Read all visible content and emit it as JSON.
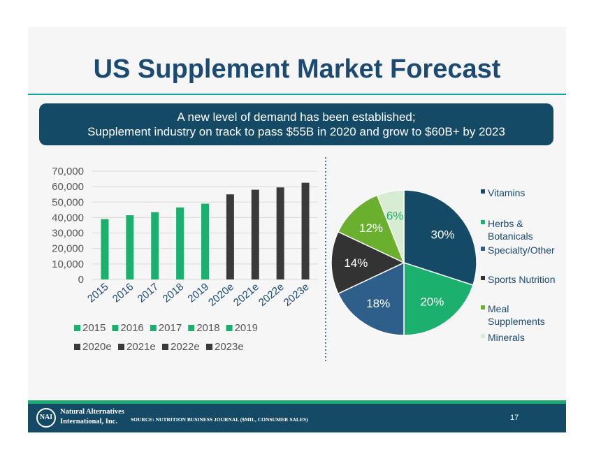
{
  "title": "US Supplement Market Forecast",
  "banner": {
    "line1": "A new level of demand has been established;",
    "line2": "Supplement industry on track to pass $55B in 2020 and grow to $60B+ by 2023"
  },
  "footer": {
    "logo_text": "NAI",
    "company_line1": "Natural Alternatives",
    "company_line2": "International, Inc.",
    "source": "SOURCE: NUTRITION BUSINESS JOURNAL ($MIL, CONSUMER SALES)",
    "page_number": "17"
  },
  "colors": {
    "actual": "#1bb06d",
    "estimate": "#3a3a3a",
    "title": "#1b4a72",
    "banner": "#154a66",
    "divider": "#1b4a72"
  },
  "chart_data": [
    {
      "type": "bar",
      "categories": [
        "2015",
        "2016",
        "2017",
        "2018",
        "2019",
        "2020e",
        "2021e",
        "2022e",
        "2023e"
      ],
      "values": [
        39000,
        41500,
        43500,
        46500,
        49000,
        55000,
        58000,
        59500,
        62500
      ],
      "bar_colors": [
        "#1bb06d",
        "#1bb06d",
        "#1bb06d",
        "#1bb06d",
        "#1bb06d",
        "#3a3a3a",
        "#3a3a3a",
        "#3a3a3a",
        "#3a3a3a"
      ],
      "ylim": [
        0,
        70000
      ],
      "y_ticks": [
        "0",
        "10,000",
        "20,000",
        "30,000",
        "40,000",
        "50,000",
        "60,000",
        "70,000"
      ],
      "grid": true,
      "legend": [
        "2015",
        "2016",
        "2017",
        "2018",
        "2019",
        "2020e",
        "2021e",
        "2022e",
        "2023e"
      ],
      "legend_position": "bottom"
    },
    {
      "type": "pie",
      "labels": [
        "Vitamins",
        "Herbs & Botanicals",
        "Specialty/Other",
        "Sports Nutrition",
        "Meal Supplements",
        "Minerals"
      ],
      "values": [
        30,
        20,
        18,
        14,
        12,
        6
      ],
      "data_labels": [
        "30%",
        "20%",
        "18%",
        "14%",
        "12%",
        "6%"
      ],
      "colors": [
        "#154a66",
        "#1bb06d",
        "#2e5f8a",
        "#333333",
        "#6aaf2e",
        "#d7ecd2"
      ],
      "legend_position": "right"
    }
  ]
}
